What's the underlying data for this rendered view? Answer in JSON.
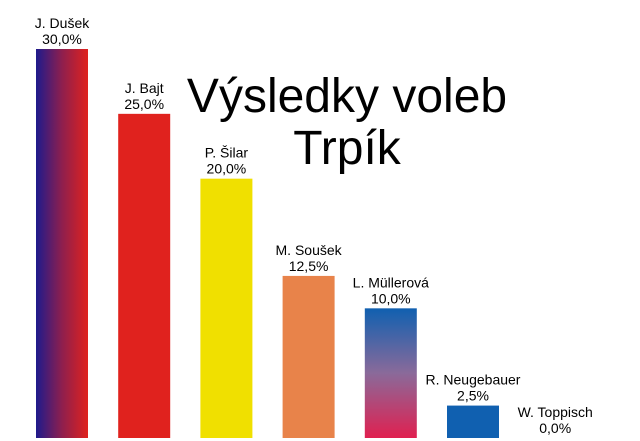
{
  "chart_data": {
    "type": "bar",
    "title_lines": [
      "Výsledky voleb",
      "Trpík"
    ],
    "categories": [
      "J. Dušek",
      "J. Bajt",
      "P. Šilar",
      "M. Soušek",
      "L. Müllerová",
      "R. Neugebauer",
      "W. Toppisch"
    ],
    "values": [
      30.0,
      25.0,
      20.0,
      12.5,
      10.0,
      2.5,
      0.0
    ],
    "value_labels": [
      "30,0%",
      "25,0%",
      "20,0%",
      "12,5%",
      "10,0%",
      "2,5%",
      "0,0%"
    ],
    "fills": [
      {
        "kind": "horizontal-gradient",
        "stops": [
          "#1e1a8c",
          "#8e1f4e",
          "#e0221e"
        ]
      },
      {
        "kind": "solid",
        "color": "#e0221e"
      },
      {
        "kind": "solid",
        "color": "#f0e000"
      },
      {
        "kind": "solid",
        "color": "#e8834a"
      },
      {
        "kind": "vertical-gradient",
        "stops": [
          "#1060b0",
          "#8a6a9a",
          "#e02050"
        ]
      },
      {
        "kind": "solid",
        "color": "#1060b0"
      },
      {
        "kind": "solid",
        "color": "#ffffff"
      }
    ],
    "ylim": [
      0,
      30
    ],
    "grid": false,
    "legend": "none"
  }
}
